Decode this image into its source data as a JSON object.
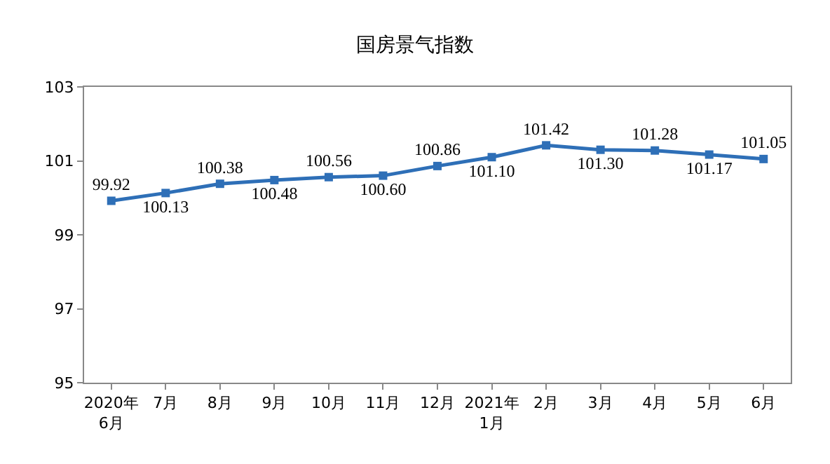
{
  "chart_data": {
    "type": "line",
    "title": "国房景气指数",
    "categories": [
      "2020年\n6月",
      "7月",
      "8月",
      "9月",
      "10月",
      "11月",
      "12月",
      "2021年\n1月",
      "2月",
      "3月",
      "4月",
      "5月",
      "6月"
    ],
    "series": [
      {
        "color": "#2e6fb7",
        "values": [
          99.92,
          100.13,
          100.38,
          100.48,
          100.56,
          100.6,
          100.86,
          101.1,
          101.42,
          101.3,
          101.28,
          101.17,
          101.05
        ],
        "value_labels": [
          "99.92",
          "100.13",
          "100.38",
          "100.48",
          "100.56",
          "100.60",
          "100.86",
          "101.10",
          "101.42",
          "101.30",
          "101.28",
          "101.17",
          "101.05"
        ]
      }
    ],
    "ylim": [
      95,
      103
    ],
    "yticks": [
      95,
      97,
      99,
      101,
      103
    ],
    "marker": "square",
    "line_style": "solid"
  }
}
